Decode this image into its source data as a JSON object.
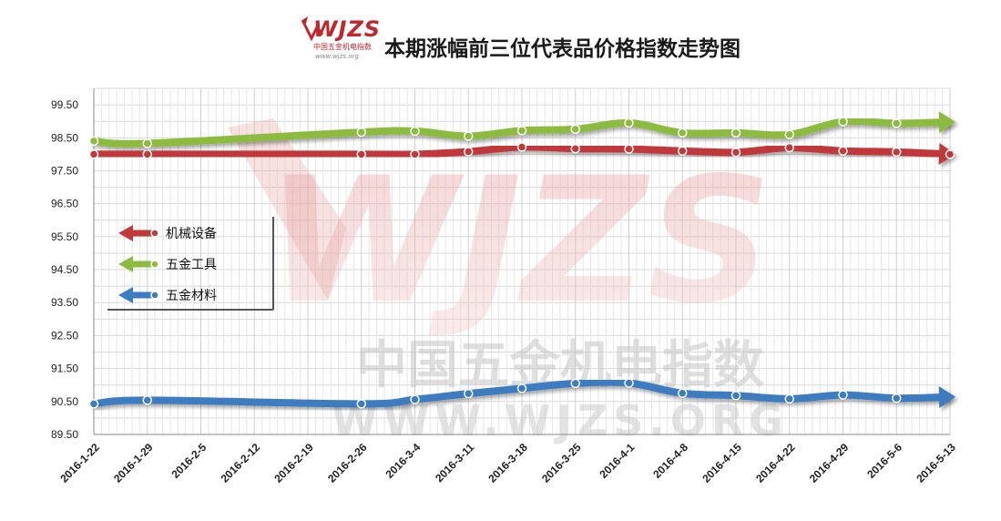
{
  "header": {
    "title": "本期涨幅前三位代表品价格指数走势图",
    "logo_text": "WJZS",
    "logo_cn": "中国五金机电指数",
    "logo_url": "www.wjzs.org"
  },
  "watermark": {
    "logo": "WJZS",
    "cn": "中国五金机电指数",
    "url": "WWW.WJZS.ORG"
  },
  "chart_data": {
    "type": "line",
    "title": "本期涨幅前三位代表品价格指数走势图",
    "x": [
      "2016-1-22",
      "2016-1-29",
      "2016-2-5",
      "2016-2-12",
      "2016-2-19",
      "2016-2-26",
      "2016-3-4",
      "2016-3-11",
      "2016-3-18",
      "2016-3-25",
      "2016-4-1",
      "2016-4-8",
      "2016-4-15",
      "2016-4-22",
      "2016-4-29",
      "2016-5-6",
      "2016-5-13"
    ],
    "ylim": [
      89.5,
      100
    ],
    "yticks": [
      "89.50",
      "90.50",
      "91.50",
      "92.50",
      "93.50",
      "94.50",
      "95.50",
      "96.50",
      "97.50",
      "98.50",
      "99.50"
    ],
    "grid": true,
    "legend_position": "left",
    "series": [
      {
        "name": "机械设备",
        "color": "#c0393b",
        "values": [
          98.0,
          98.0,
          null,
          null,
          null,
          98.0,
          98.0,
          98.08,
          98.22,
          98.17,
          98.16,
          98.1,
          98.06,
          98.2,
          98.1,
          98.07,
          98.0
        ]
      },
      {
        "name": "五金工具",
        "color": "#8dbb3f",
        "values": [
          98.4,
          98.33,
          null,
          null,
          null,
          98.67,
          98.7,
          98.55,
          98.72,
          98.76,
          98.95,
          98.65,
          98.65,
          98.6,
          98.99,
          98.94,
          98.98
        ]
      },
      {
        "name": "五金材料",
        "color": "#3d7cc0",
        "values": [
          90.43,
          90.54,
          null,
          null,
          null,
          90.43,
          90.56,
          90.74,
          90.9,
          91.05,
          91.06,
          90.75,
          90.68,
          90.58,
          90.7,
          90.6,
          90.64
        ]
      }
    ]
  }
}
